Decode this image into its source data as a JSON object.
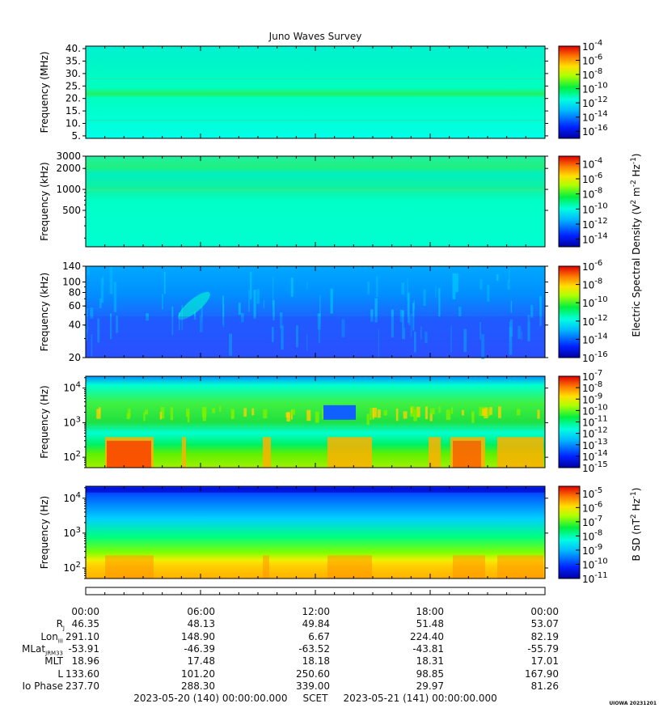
{
  "title": "Juno Waves Survey",
  "chart_data": [
    {
      "type": "heatmap",
      "ylabel": "Frequency (MHz)",
      "yscale": "linear",
      "ylim": [
        4,
        41
      ],
      "yticks": [
        "5.",
        "10.",
        "15.",
        "20.",
        "25.",
        "30.",
        "35.",
        "40."
      ],
      "ytick_values": [
        5,
        10,
        15,
        20,
        25,
        30,
        35,
        40
      ],
      "colorbar": {
        "ticks": [
          "-4",
          "-6",
          "-8",
          "-10",
          "-12",
          "-14",
          "-16"
        ],
        "range": [
          -17,
          -4
        ]
      },
      "description_level": "background ~1e-12 with band near 21 MHz"
    },
    {
      "type": "heatmap",
      "ylabel": "Frequency (kHz)",
      "yscale": "log",
      "ylim": [
        150,
        3000
      ],
      "yticks": [
        "3000",
        "2000",
        "1000",
        "500"
      ],
      "ytick_values": [
        3000,
        2000,
        1000,
        500
      ],
      "colorbar": {
        "ticks": [
          "-4",
          "-6",
          "-8",
          "-10",
          "-12",
          "-14"
        ],
        "range": [
          -15,
          -3
        ]
      }
    },
    {
      "type": "heatmap",
      "ylabel": "Frequency (kHz)",
      "yscale": "log",
      "ylim": [
        20,
        140
      ],
      "yticks": [
        "140",
        "100",
        "80",
        "60",
        "40",
        "20"
      ],
      "ytick_values": [
        140,
        100,
        80,
        60,
        40,
        20
      ],
      "colorbar": {
        "ticks": [
          "-6",
          "-8",
          "-10",
          "-12",
          "-14",
          "-16"
        ],
        "range": [
          -16,
          -6
        ]
      }
    },
    {
      "type": "heatmap",
      "ylabel": "Frequency (Hz)",
      "yscale": "log",
      "ylim": [
        50,
        22000
      ],
      "yticks_exp": [
        "4",
        "3",
        "2"
      ],
      "ytick_values": [
        10000,
        1000,
        100
      ],
      "colorbar": {
        "ticks": [
          "-7",
          "-8",
          "-9",
          "-10",
          "-11",
          "-12",
          "-13",
          "-14",
          "-15"
        ],
        "range": [
          -15,
          -7
        ]
      }
    },
    {
      "type": "heatmap",
      "ylabel": "Frequency (Hz)",
      "yscale": "log",
      "ylim": [
        50,
        22000
      ],
      "yticks_exp": [
        "4",
        "3",
        "2"
      ],
      "ytick_values": [
        10000,
        1000,
        100
      ],
      "colorbar": {
        "ticks": [
          "-5",
          "-6",
          "-7",
          "-8",
          "-9",
          "-10",
          "-11"
        ],
        "range": [
          -11,
          -4.5
        ]
      }
    }
  ],
  "colorbar_label_e": "Electric Spectral Density (V",
  "colorbar_label_e_parts": [
    "Electric Spectral Density (V",
    "2",
    " m",
    "-2",
    " Hz",
    "-1",
    ")"
  ],
  "colorbar_label_b_parts": [
    "B SD (nT",
    "2",
    " Hz",
    "-1",
    ")"
  ],
  "colorbar_base": "10",
  "x_ticks": [
    "00:00",
    "06:00",
    "12:00",
    "18:00",
    "00:00"
  ],
  "ephemeris": {
    "labels": [
      "R",
      "Lon",
      "MLat",
      "MLT",
      "L",
      "Io Phase"
    ],
    "label_subs": [
      "J",
      "III",
      "JRM33",
      "",
      "",
      ""
    ],
    "rows": [
      [
        "46.35",
        "48.13",
        "49.84",
        "51.48",
        "53.07"
      ],
      [
        "291.10",
        "148.90",
        "6.67",
        "224.40",
        "82.19"
      ],
      [
        "-53.91",
        "-46.39",
        "-63.52",
        "-43.81",
        "-55.79"
      ],
      [
        "18.96",
        "17.48",
        "18.18",
        "18.31",
        "17.01"
      ],
      [
        "133.60",
        "101.20",
        "250.60",
        "98.85",
        "167.90"
      ],
      [
        "237.70",
        "288.30",
        "339.00",
        "29.97",
        "81.26"
      ]
    ]
  },
  "footer": {
    "start": "2023-05-20 (140) 00:00:00.000",
    "mid": "SCET",
    "end": "2023-05-21 (141) 00:00:00.000"
  },
  "credit": "UIOWA 20231201"
}
